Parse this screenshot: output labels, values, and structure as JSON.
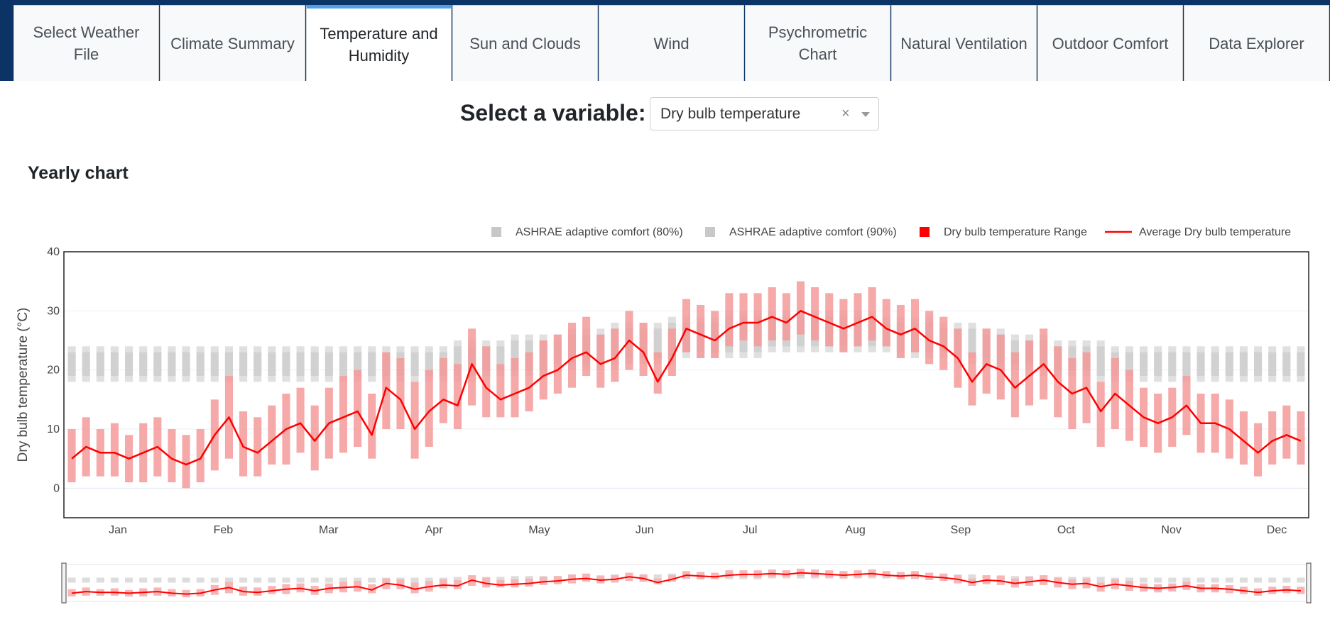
{
  "tabs": [
    {
      "label": "Select Weather File",
      "active": false
    },
    {
      "label": "Climate Summary",
      "active": false
    },
    {
      "label": "Temperature and Humidity",
      "active": true
    },
    {
      "label": "Sun and Clouds",
      "active": false
    },
    {
      "label": "Wind",
      "active": false
    },
    {
      "label": "Psychrometric Chart",
      "active": false
    },
    {
      "label": "Natural Ventilation",
      "active": false
    },
    {
      "label": "Outdoor Comfort",
      "active": false
    },
    {
      "label": "Data Explorer",
      "active": false
    }
  ],
  "variable_selector": {
    "label": "Select a variable:",
    "value": "Dry bulb temperature",
    "clear_icon": "×",
    "dropdown_icon": "chevron-down-icon"
  },
  "section": {
    "title": "Yearly chart"
  },
  "colors": {
    "header_bg": "#0c3366",
    "active_tab_accent": "#4ea1e8",
    "comfort_band": "#d3d3d3",
    "range": "#f5a3a3",
    "average": "#ff0000"
  },
  "chart_data": {
    "type": "line",
    "ylabel": "Dry bulb temperature (°C)",
    "xlabel": "",
    "ylim": [
      -5,
      40
    ],
    "yticks": [
      0,
      10,
      20,
      30,
      40
    ],
    "xticks": [
      "Jan",
      "Feb",
      "Mar",
      "Apr",
      "May",
      "Jun",
      "Jul",
      "Aug",
      "Sep",
      "Oct",
      "Nov",
      "Dec"
    ],
    "grid": true,
    "legend_position": "top-right",
    "legend": [
      {
        "name": "ASHRAE adaptive comfort (80%)",
        "color": "#c8c8c8",
        "symbol": "square"
      },
      {
        "name": "ASHRAE adaptive comfort (90%)",
        "color": "#c8c8c8",
        "symbol": "square"
      },
      {
        "name": "Dry bulb temperature Range",
        "color": "#ff0000",
        "symbol": "square"
      },
      {
        "name": "Average Dry bulb temperature",
        "color": "#ff0000",
        "symbol": "line"
      }
    ],
    "days_per_point": 7,
    "series": [
      {
        "name": "Average Dry bulb temperature",
        "values": [
          5,
          7,
          6,
          6,
          5,
          6,
          7,
          5,
          4,
          5,
          9,
          12,
          7,
          6,
          8,
          10,
          11,
          8,
          11,
          12,
          13,
          9,
          17,
          15,
          10,
          13,
          15,
          14,
          21,
          17,
          15,
          16,
          17,
          19,
          20,
          22,
          23,
          21,
          22,
          25,
          23,
          18,
          22,
          27,
          26,
          25,
          27,
          28,
          28,
          29,
          28,
          30,
          29,
          28,
          27,
          28,
          29,
          27,
          26,
          27,
          25,
          24,
          22,
          18,
          21,
          20,
          17,
          19,
          21,
          18,
          16,
          17,
          13,
          16,
          14,
          12,
          11,
          12,
          14,
          11,
          11,
          10,
          8,
          6,
          8,
          9,
          8
        ]
      },
      {
        "name": "Dry bulb temperature Range",
        "low": [
          1,
          2,
          2,
          2,
          1,
          1,
          2,
          1,
          0,
          1,
          3,
          5,
          2,
          2,
          4,
          4,
          6,
          3,
          5,
          6,
          7,
          5,
          10,
          10,
          5,
          7,
          11,
          10,
          14,
          12,
          12,
          12,
          13,
          15,
          16,
          17,
          19,
          17,
          18,
          20,
          19,
          16,
          19,
          23,
          22,
          22,
          24,
          25,
          24,
          25,
          25,
          26,
          25,
          24,
          23,
          24,
          25,
          24,
          22,
          23,
          21,
          20,
          17,
          14,
          16,
          15,
          12,
          14,
          15,
          12,
          10,
          11,
          7,
          10,
          8,
          7,
          6,
          7,
          9,
          6,
          6,
          5,
          4,
          2,
          4,
          5,
          4
        ],
        "high": [
          10,
          12,
          10,
          11,
          9,
          11,
          12,
          10,
          9,
          10,
          15,
          19,
          13,
          12,
          14,
          16,
          17,
          14,
          17,
          19,
          20,
          16,
          23,
          22,
          18,
          20,
          22,
          21,
          27,
          24,
          21,
          22,
          23,
          25,
          26,
          28,
          29,
          26,
          27,
          30,
          28,
          23,
          27,
          32,
          31,
          30,
          33,
          33,
          33,
          34,
          33,
          35,
          34,
          33,
          32,
          33,
          34,
          32,
          31,
          32,
          30,
          29,
          27,
          23,
          27,
          26,
          23,
          25,
          27,
          24,
          22,
          23,
          18,
          22,
          20,
          17,
          16,
          17,
          19,
          16,
          16,
          15,
          13,
          11,
          13,
          14,
          13
        ]
      },
      {
        "name": "ASHRAE adaptive comfort (80%)",
        "low": [
          18,
          18,
          18,
          18,
          18,
          18,
          18,
          18,
          18,
          18,
          18,
          18,
          18,
          18,
          18,
          18,
          18,
          18,
          18,
          18,
          18,
          18,
          18,
          18,
          18,
          18,
          18,
          18,
          18,
          19,
          19,
          19,
          19,
          19,
          20,
          20,
          20,
          20,
          20,
          21,
          21,
          21,
          21,
          22,
          22,
          22,
          22,
          22,
          22,
          23,
          23,
          23,
          23,
          23,
          23,
          23,
          23,
          23,
          22,
          22,
          22,
          22,
          21,
          21,
          21,
          20,
          20,
          20,
          19,
          19,
          19,
          19,
          18,
          18,
          18,
          18,
          18,
          18,
          18,
          18,
          18,
          18,
          18,
          18,
          18,
          18,
          18
        ],
        "high": [
          24,
          24,
          24,
          24,
          24,
          24,
          24,
          24,
          24,
          24,
          24,
          24,
          24,
          24,
          24,
          24,
          24,
          24,
          24,
          24,
          24,
          24,
          24,
          24,
          24,
          24,
          24,
          25,
          25,
          25,
          25,
          26,
          26,
          26,
          26,
          27,
          27,
          27,
          28,
          28,
          28,
          28,
          29,
          29,
          29,
          29,
          30,
          30,
          30,
          30,
          30,
          30,
          30,
          30,
          30,
          30,
          30,
          29,
          29,
          29,
          29,
          28,
          28,
          28,
          27,
          27,
          26,
          26,
          26,
          25,
          25,
          25,
          25,
          24,
          24,
          24,
          24,
          24,
          24,
          24,
          24,
          24,
          24,
          24,
          24,
          24,
          24
        ]
      },
      {
        "name": "ASHRAE adaptive comfort (90%)",
        "low": [
          19,
          19,
          19,
          19,
          19,
          19,
          19,
          19,
          19,
          19,
          19,
          19,
          19,
          19,
          19,
          19,
          19,
          19,
          19,
          19,
          19,
          19,
          19,
          19,
          19,
          19,
          19,
          19,
          19,
          20,
          20,
          20,
          20,
          20,
          21,
          21,
          21,
          21,
          21,
          22,
          22,
          22,
          22,
          23,
          23,
          23,
          23,
          23,
          23,
          24,
          24,
          24,
          24,
          24,
          24,
          24,
          24,
          24,
          23,
          23,
          23,
          23,
          22,
          22,
          22,
          21,
          21,
          21,
          20,
          20,
          20,
          20,
          19,
          19,
          19,
          19,
          19,
          19,
          19,
          19,
          19,
          19,
          19,
          19,
          19,
          19,
          19
        ],
        "high": [
          23,
          23,
          23,
          23,
          23,
          23,
          23,
          23,
          23,
          23,
          23,
          23,
          23,
          23,
          23,
          23,
          23,
          23,
          23,
          23,
          23,
          23,
          23,
          23,
          23,
          23,
          23,
          24,
          24,
          24,
          24,
          25,
          25,
          25,
          25,
          26,
          26,
          26,
          27,
          27,
          27,
          27,
          28,
          28,
          28,
          28,
          29,
          29,
          29,
          29,
          29,
          29,
          29,
          29,
          29,
          29,
          29,
          28,
          28,
          28,
          28,
          27,
          27,
          27,
          26,
          26,
          25,
          25,
          25,
          24,
          24,
          24,
          24,
          23,
          23,
          23,
          23,
          23,
          23,
          23,
          23,
          23,
          23,
          23,
          23,
          23,
          23
        ]
      }
    ]
  }
}
